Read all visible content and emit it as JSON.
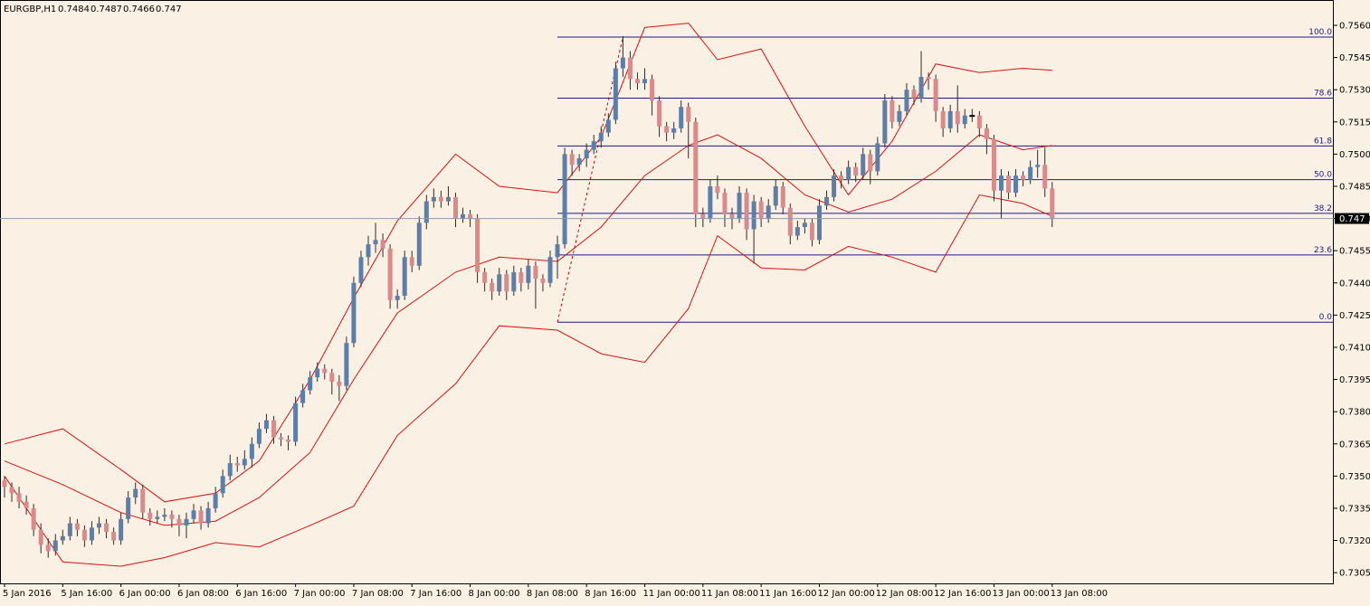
{
  "chart_data": {
    "type": "candlestick",
    "title": "EURGBP,H1",
    "up_color": "#5b7fa8",
    "down_color": "#d98a8a",
    "ylim": [
      0.73,
      0.75718
    ],
    "yticks": [
      {
        "value": 0.756,
        "label": "0.7560"
      },
      0.7545,
      {
        "value": 0.753,
        "label": "0.7530"
      },
      0.7515,
      {
        "value": 0.75,
        "label": "0.7500"
      },
      0.7485,
      {
        "value": 0.747,
        "label": "0.7470"
      },
      0.7455,
      {
        "value": 0.744,
        "label": "0.7440"
      },
      0.7425,
      {
        "value": 0.741,
        "label": "0.7410"
      },
      0.7395,
      {
        "value": 0.738,
        "label": "0.7380"
      },
      0.7365,
      {
        "value": 0.735,
        "label": "0.7350"
      },
      0.7335,
      {
        "value": 0.732,
        "label": "0.7320"
      },
      0.7305
    ],
    "categories": [
      "5 Jan 2016",
      null,
      null,
      null,
      null,
      null,
      null,
      null,
      "5 Jan 16:00",
      null,
      null,
      null,
      null,
      null,
      null,
      null,
      "6 Jan 00:00",
      null,
      null,
      null,
      null,
      null,
      null,
      null,
      "6 Jan 08:00",
      null,
      null,
      null,
      null,
      null,
      null,
      null,
      "6 Jan 16:00",
      null,
      null,
      null,
      null,
      null,
      null,
      null,
      "7 Jan 00:00",
      null,
      null,
      null,
      null,
      null,
      null,
      null,
      "7 Jan 08:00",
      null,
      null,
      null,
      null,
      null,
      null,
      null,
      "7 Jan 16:00",
      null,
      null,
      null,
      null,
      null,
      null,
      null,
      "8 Jan 00:00",
      null,
      null,
      null,
      null,
      null,
      null,
      null,
      "8 Jan 08:00",
      null,
      null,
      null,
      null,
      null,
      null,
      null,
      "8 Jan 16:00",
      null,
      null,
      null,
      null,
      null,
      null,
      null,
      "11 Jan 00:00",
      null,
      null,
      null,
      null,
      null,
      null,
      null,
      "11 Jan 08:00",
      null,
      null,
      null,
      null,
      null,
      null,
      null,
      "11 Jan 16:00",
      null,
      null,
      null,
      null,
      null,
      null,
      null,
      "12 Jan 00:00",
      null,
      null,
      null,
      null,
      null,
      null,
      null,
      "12 Jan 08:00",
      null,
      null,
      null,
      null,
      null,
      null,
      null,
      "12 Jan 16:00",
      null,
      null,
      null,
      null,
      null,
      null,
      null,
      "13 Jan 00:00",
      null,
      null,
      null,
      null,
      null,
      null,
      null,
      "13 Jan 08:00"
    ],
    "ohlc": [
      [
        0.7348,
        0.735,
        0.734,
        0.7345
      ],
      [
        0.7345,
        0.7347,
        0.7338,
        0.7342
      ],
      [
        0.7342,
        0.7345,
        0.7335,
        0.7338
      ],
      [
        0.7338,
        0.7341,
        0.7332,
        0.7335
      ],
      [
        0.7335,
        0.7337,
        0.7322,
        0.7325
      ],
      [
        0.7325,
        0.7328,
        0.7314,
        0.7318
      ],
      [
        0.7318,
        0.7321,
        0.7312,
        0.7315
      ],
      [
        0.7315,
        0.7323,
        0.7313,
        0.732
      ],
      [
        0.732,
        0.7325,
        0.7318,
        0.7322
      ],
      [
        0.7322,
        0.7331,
        0.732,
        0.7328
      ],
      [
        0.7328,
        0.733,
        0.7322,
        0.7325
      ],
      [
        0.7325,
        0.7327,
        0.7317,
        0.732
      ],
      [
        0.732,
        0.7329,
        0.7318,
        0.7326
      ],
      [
        0.7326,
        0.7331,
        0.7323,
        0.7328
      ],
      [
        0.7328,
        0.733,
        0.7321,
        0.7324
      ],
      [
        0.7324,
        0.7326,
        0.7318,
        0.732
      ],
      [
        0.732,
        0.7333,
        0.7318,
        0.733
      ],
      [
        0.733,
        0.7343,
        0.7328,
        0.734
      ],
      [
        0.734,
        0.7347,
        0.7337,
        0.7344
      ],
      [
        0.7344,
        0.7346,
        0.733,
        0.7333
      ],
      [
        0.7333,
        0.7335,
        0.7327,
        0.733
      ],
      [
        0.733,
        0.7334,
        0.7328,
        0.7331
      ],
      [
        0.7331,
        0.7335,
        0.7329,
        0.7332
      ],
      [
        0.7332,
        0.7334,
        0.7326,
        0.733
      ],
      [
        0.733,
        0.7332,
        0.7322,
        0.7327
      ],
      [
        0.7327,
        0.7333,
        0.7321,
        0.733
      ],
      [
        0.733,
        0.7337,
        0.7328,
        0.7334
      ],
      [
        0.7334,
        0.7336,
        0.7325,
        0.7328
      ],
      [
        0.7328,
        0.7338,
        0.7326,
        0.7335
      ],
      [
        0.7335,
        0.7345,
        0.7333,
        0.7342
      ],
      [
        0.7342,
        0.7353,
        0.734,
        0.735
      ],
      [
        0.735,
        0.736,
        0.7348,
        0.7356
      ],
      [
        0.7356,
        0.7359,
        0.7352,
        0.7355
      ],
      [
        0.7355,
        0.7362,
        0.7353,
        0.7358
      ],
      [
        0.7358,
        0.7368,
        0.7354,
        0.7365
      ],
      [
        0.7365,
        0.7375,
        0.7363,
        0.7372
      ],
      [
        0.7372,
        0.7379,
        0.737,
        0.7376
      ],
      [
        0.7376,
        0.7378,
        0.7365,
        0.7368
      ],
      [
        0.7368,
        0.737,
        0.7364,
        0.7367
      ],
      [
        0.7367,
        0.7369,
        0.7362,
        0.7366
      ],
      [
        0.7366,
        0.7387,
        0.7364,
        0.7384
      ],
      [
        0.7384,
        0.7393,
        0.7382,
        0.739
      ],
      [
        0.739,
        0.7399,
        0.7388,
        0.7396
      ],
      [
        0.7396,
        0.7403,
        0.7394,
        0.74
      ],
      [
        0.74,
        0.7402,
        0.7395,
        0.7398
      ],
      [
        0.7398,
        0.74,
        0.7388,
        0.7394
      ],
      [
        0.7394,
        0.7397,
        0.7385,
        0.7392
      ],
      [
        0.7392,
        0.7415,
        0.739,
        0.7412
      ],
      [
        0.7412,
        0.7443,
        0.741,
        0.744
      ],
      [
        0.744,
        0.7455,
        0.7438,
        0.7452
      ],
      [
        0.7452,
        0.7462,
        0.7448,
        0.7458
      ],
      [
        0.7458,
        0.7468,
        0.7454,
        0.746
      ],
      [
        0.746,
        0.7463,
        0.7452,
        0.7456
      ],
      [
        0.7456,
        0.7458,
        0.7428,
        0.7432
      ],
      [
        0.7432,
        0.7437,
        0.7428,
        0.7434
      ],
      [
        0.7434,
        0.7455,
        0.7432,
        0.7452
      ],
      [
        0.7452,
        0.7455,
        0.7445,
        0.7448
      ],
      [
        0.7448,
        0.7471,
        0.7446,
        0.7468
      ],
      [
        0.7468,
        0.7481,
        0.7465,
        0.7478
      ],
      [
        0.7478,
        0.7484,
        0.7475,
        0.748
      ],
      [
        0.748,
        0.7483,
        0.7475,
        0.7478
      ],
      [
        0.7478,
        0.7485,
        0.7476,
        0.748
      ],
      [
        0.748,
        0.7482,
        0.7466,
        0.747
      ],
      [
        0.747,
        0.7475,
        0.7468,
        0.7472
      ],
      [
        0.7472,
        0.7474,
        0.7466,
        0.747
      ],
      [
        0.747,
        0.7472,
        0.744,
        0.7445
      ],
      [
        0.7445,
        0.7447,
        0.7436,
        0.744
      ],
      [
        0.744,
        0.7442,
        0.7432,
        0.7436
      ],
      [
        0.7436,
        0.7447,
        0.7434,
        0.7444
      ],
      [
        0.7444,
        0.7446,
        0.7432,
        0.7436
      ],
      [
        0.7436,
        0.7448,
        0.7434,
        0.7445
      ],
      [
        0.7445,
        0.7447,
        0.7436,
        0.744
      ],
      [
        0.744,
        0.7451,
        0.7437,
        0.7448
      ],
      [
        0.7448,
        0.745,
        0.7428,
        0.7442
      ],
      [
        0.7442,
        0.7444,
        0.7436,
        0.744
      ],
      [
        0.744,
        0.7455,
        0.7438,
        0.7452
      ],
      [
        0.7452,
        0.7462,
        0.7442,
        0.7458
      ],
      [
        0.7458,
        0.7503,
        0.7456,
        0.75
      ],
      [
        0.75,
        0.7502,
        0.749,
        0.7495
      ],
      [
        0.7495,
        0.75,
        0.7492,
        0.7498
      ],
      [
        0.7498,
        0.7505,
        0.7494,
        0.7502
      ],
      [
        0.7502,
        0.7509,
        0.75,
        0.7506
      ],
      [
        0.7506,
        0.7513,
        0.7503,
        0.751
      ],
      [
        0.751,
        0.7519,
        0.7508,
        0.7516
      ],
      [
        0.7516,
        0.7543,
        0.7514,
        0.754
      ],
      [
        0.754,
        0.7555,
        0.7536,
        0.7545
      ],
      [
        0.7545,
        0.7548,
        0.753,
        0.7535
      ],
      [
        0.7535,
        0.7538,
        0.753,
        0.7533
      ],
      [
        0.7533,
        0.754,
        0.753,
        0.7535
      ],
      [
        0.7535,
        0.7537,
        0.7518,
        0.7525
      ],
      [
        0.7525,
        0.7527,
        0.7508,
        0.7513
      ],
      [
        0.7513,
        0.7515,
        0.7506,
        0.751
      ],
      [
        0.751,
        0.7515,
        0.7507,
        0.7512
      ],
      [
        0.7512,
        0.7525,
        0.751,
        0.7522
      ],
      [
        0.7522,
        0.7524,
        0.7498,
        0.7515
      ],
      [
        0.7515,
        0.7517,
        0.7466,
        0.7472
      ],
      [
        0.7472,
        0.7475,
        0.7466,
        0.747
      ],
      [
        0.747,
        0.7488,
        0.7468,
        0.7485
      ],
      [
        0.7485,
        0.749,
        0.7479,
        0.7482
      ],
      [
        0.7482,
        0.7484,
        0.7466,
        0.7472
      ],
      [
        0.7472,
        0.7475,
        0.7465,
        0.747
      ],
      [
        0.747,
        0.7485,
        0.7468,
        0.7482
      ],
      [
        0.7482,
        0.7484,
        0.746,
        0.7465
      ],
      [
        0.7465,
        0.7481,
        0.7449,
        0.7478
      ],
      [
        0.7478,
        0.748,
        0.7466,
        0.747
      ],
      [
        0.747,
        0.7479,
        0.7468,
        0.7476
      ],
      [
        0.7476,
        0.7488,
        0.7474,
        0.7485
      ],
      [
        0.7485,
        0.7487,
        0.7472,
        0.7475
      ],
      [
        0.7475,
        0.7477,
        0.7458,
        0.7462
      ],
      [
        0.7462,
        0.7469,
        0.746,
        0.7466
      ],
      [
        0.7466,
        0.747,
        0.7463,
        0.7468
      ],
      [
        0.7468,
        0.747,
        0.7457,
        0.746
      ],
      [
        0.746,
        0.7479,
        0.7458,
        0.7476
      ],
      [
        0.7476,
        0.7483,
        0.7474,
        0.748
      ],
      [
        0.748,
        0.7493,
        0.7478,
        0.749
      ],
      [
        0.749,
        0.7492,
        0.7484,
        0.7488
      ],
      [
        0.7488,
        0.7497,
        0.7486,
        0.7494
      ],
      [
        0.7494,
        0.7496,
        0.7487,
        0.749
      ],
      [
        0.749,
        0.7503,
        0.7488,
        0.75
      ],
      [
        0.75,
        0.7502,
        0.7486,
        0.7492
      ],
      [
        0.7492,
        0.7508,
        0.749,
        0.7505
      ],
      [
        0.7505,
        0.7528,
        0.7503,
        0.7525
      ],
      [
        0.7525,
        0.7527,
        0.7512,
        0.7515
      ],
      [
        0.7515,
        0.7523,
        0.7513,
        0.752
      ],
      [
        0.752,
        0.7533,
        0.7518,
        0.753
      ],
      [
        0.753,
        0.7532,
        0.7523,
        0.7526
      ],
      [
        0.7526,
        0.7548,
        0.7524,
        0.7536
      ],
      [
        0.7536,
        0.7538,
        0.753,
        0.7535
      ],
      [
        0.7535,
        0.7537,
        0.7515,
        0.752
      ],
      [
        0.752,
        0.7522,
        0.7508,
        0.7512
      ],
      [
        0.7512,
        0.7523,
        0.751,
        0.752
      ],
      [
        0.752,
        0.7532,
        0.751,
        0.7514
      ],
      [
        0.7514,
        0.7521,
        0.7512,
        0.7518
      ],
      [
        0.7518,
        0.7521,
        0.7515,
        0.7518
      ],
      [
        0.7518,
        0.752,
        0.7508,
        0.7512
      ],
      [
        0.7512,
        0.7514,
        0.75,
        0.7507
      ],
      [
        0.7507,
        0.7509,
        0.7478,
        0.7483
      ],
      [
        0.7483,
        0.7493,
        0.747,
        0.749
      ],
      [
        0.749,
        0.7492,
        0.7479,
        0.7482
      ],
      [
        0.7482,
        0.7493,
        0.748,
        0.749
      ],
      [
        0.749,
        0.7492,
        0.7485,
        0.7488
      ],
      [
        0.7488,
        0.7497,
        0.7486,
        0.7494
      ],
      [
        0.7494,
        0.7502,
        0.7489,
        0.7495
      ],
      [
        0.7495,
        0.7503,
        0.748,
        0.7484
      ],
      [
        0.7484,
        0.7487,
        0.7466,
        0.747
      ]
    ],
    "bands": {
      "color": "#dd1111",
      "x": [
        0,
        8,
        16,
        22,
        29,
        35,
        42,
        48,
        54,
        62,
        68,
        76,
        82,
        88,
        94,
        98,
        104,
        110,
        116,
        122,
        128,
        134,
        140,
        144
      ],
      "upper": [
        0.7365,
        0.7372,
        0.7353,
        0.7338,
        0.7342,
        0.7357,
        0.7395,
        0.7433,
        0.7469,
        0.75,
        0.7485,
        0.7482,
        0.7508,
        0.7559,
        0.7561,
        0.7544,
        0.7549,
        0.7513,
        0.7481,
        0.7506,
        0.7542,
        0.7538,
        0.754,
        0.7539
      ],
      "middle": [
        0.7357,
        0.7346,
        0.7333,
        0.7327,
        0.7329,
        0.734,
        0.7361,
        0.7395,
        0.7426,
        0.7445,
        0.7452,
        0.745,
        0.7466,
        0.749,
        0.7504,
        0.7509,
        0.7498,
        0.7481,
        0.7473,
        0.7479,
        0.7492,
        0.7509,
        0.7502,
        0.7504
      ],
      "lower": [
        0.735,
        0.731,
        0.7308,
        0.7312,
        0.7319,
        0.7317,
        0.7327,
        0.7336,
        0.7369,
        0.7393,
        0.742,
        0.7418,
        0.7407,
        0.7403,
        0.7428,
        0.7462,
        0.7447,
        0.7446,
        0.7457,
        0.7452,
        0.7445,
        0.7481,
        0.7477,
        0.7471
      ]
    },
    "fib": {
      "color": "#1a1a8c",
      "from": 76,
      "to": 85,
      "levels": [
        {
          "label": "100.0",
          "price": 0.75545
        },
        {
          "label": "78.6",
          "price": 0.75261
        },
        {
          "label": "61.8",
          "price": 0.75038
        },
        {
          "label": "50.0",
          "price": 0.74881
        },
        {
          "label": "38.2",
          "price": 0.74724
        },
        {
          "label": "23.6",
          "price": 0.7453
        },
        {
          "label": "0.0",
          "price": 0.74217
        }
      ]
    }
  }
}
